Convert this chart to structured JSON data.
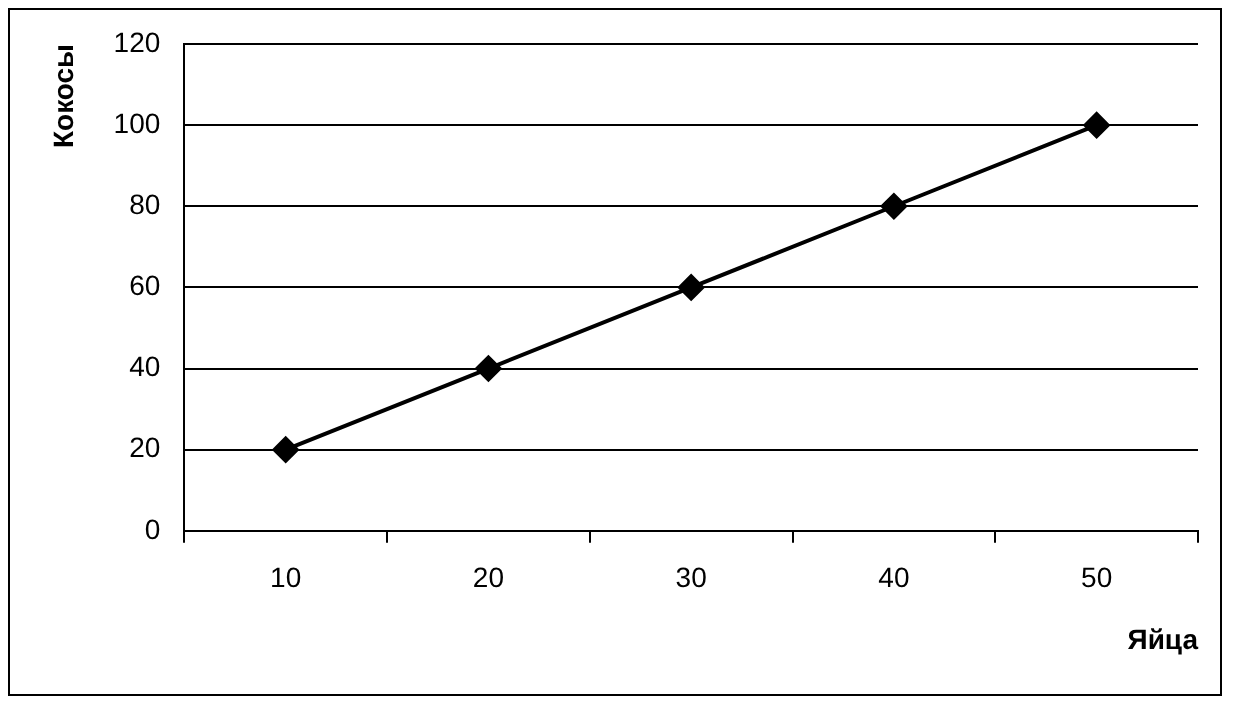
{
  "chart_data": {
    "type": "line",
    "xlabel": "Яйца",
    "ylabel": "Кокосы",
    "categories": [
      "10",
      "20",
      "30",
      "40",
      "50"
    ],
    "series": [
      {
        "color": "#000000",
        "values": [
          20,
          40,
          60,
          80,
          100
        ]
      }
    ],
    "ylim": [
      0,
      120
    ],
    "yticks": [
      0,
      20,
      40,
      60,
      80,
      100,
      120
    ],
    "grid": "y",
    "legend": false,
    "marker": "diamond",
    "line_style": "solid"
  }
}
